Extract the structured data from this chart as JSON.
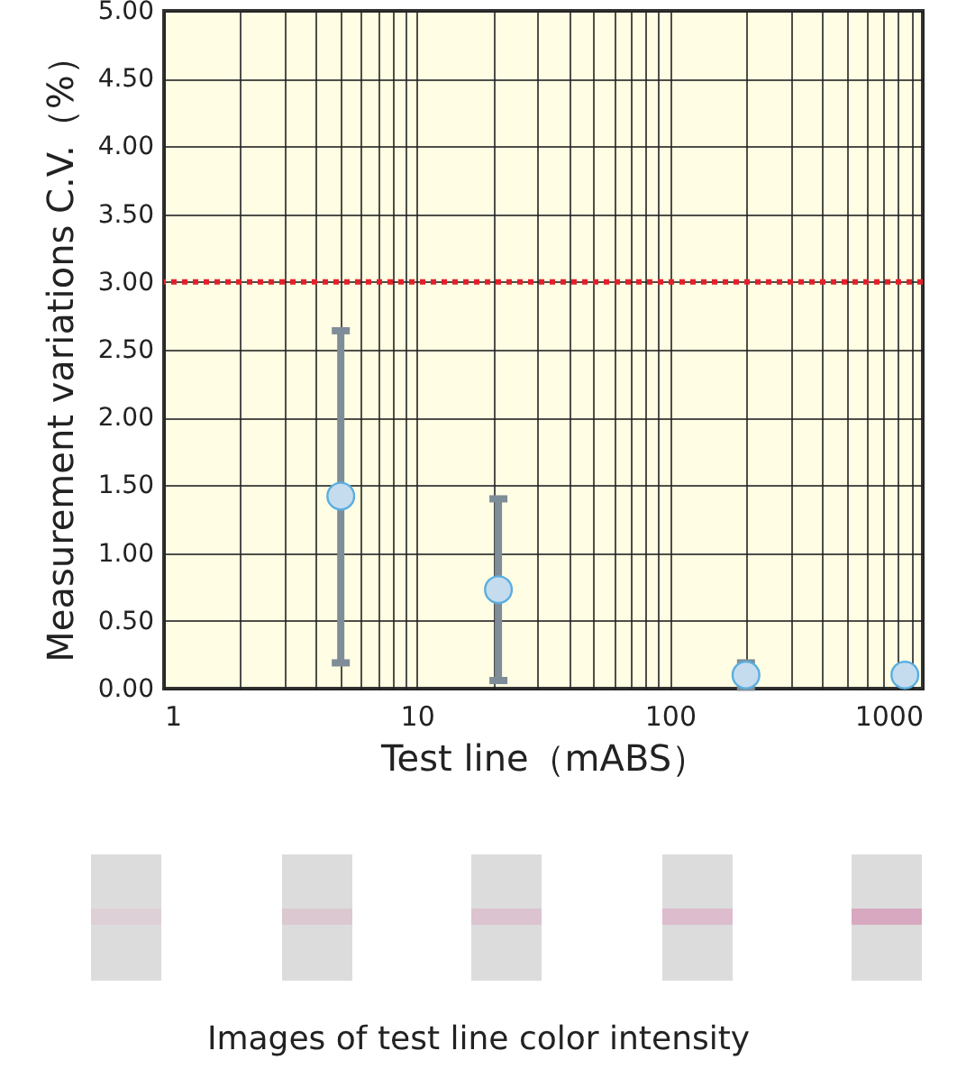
{
  "chart_data": {
    "type": "scatter",
    "xlabel": "Test line（mABS）",
    "ylabel": "Measurement variations C.V.（%）",
    "x": [
      5,
      21,
      200,
      850
    ],
    "series": [
      {
        "color": "#c5dcee",
        "values": [
          1.42,
          0.73,
          0.1,
          0.1
        ],
        "errors": [
          [
            0.19,
            2.64
          ],
          [
            0.06,
            1.4
          ],
          [
            0.01,
            0.19
          ],
          null
        ]
      }
    ],
    "log": "x",
    "grid": true,
    "marker": "circle",
    "xlim": [
      1,
      1000
    ],
    "xticks": [
      1,
      {
        "value": 2,
        "label": null
      },
      {
        "value": 3,
        "label": null
      },
      {
        "value": 4,
        "label": null
      },
      {
        "value": 5,
        "label": null
      },
      {
        "value": 6,
        "label": null
      },
      {
        "value": 7,
        "label": null
      },
      {
        "value": 8,
        "label": null
      },
      {
        "value": 9,
        "label": null
      },
      10,
      {
        "value": 20,
        "label": null
      },
      {
        "value": 30,
        "label": null
      },
      {
        "value": 40,
        "label": null
      },
      {
        "value": 50,
        "label": null
      },
      {
        "value": 60,
        "label": null
      },
      {
        "value": 70,
        "label": null
      },
      {
        "value": 80,
        "label": null
      },
      {
        "value": 90,
        "label": null
      },
      100,
      {
        "value": 200,
        "label": null
      },
      {
        "value": 300,
        "label": null
      },
      {
        "value": 400,
        "label": null
      },
      {
        "value": 500,
        "label": null
      },
      {
        "value": 600,
        "label": null
      },
      {
        "value": 700,
        "label": null
      },
      {
        "value": 800,
        "label": null
      },
      {
        "value": 900,
        "label": null
      },
      1000
    ],
    "ylim": [
      0,
      5
    ],
    "yticks": [
      {
        "value": 0,
        "label": "0.00"
      },
      {
        "value": 0.5,
        "label": "0.50"
      },
      {
        "value": 1,
        "label": "1.00"
      },
      {
        "value": 1.5,
        "label": "1.50"
      },
      {
        "value": 2,
        "label": "2.00"
      },
      {
        "value": 2.5,
        "label": "2.50"
      },
      {
        "value": 3,
        "label": "3.00"
      },
      {
        "value": 3.5,
        "label": "3.50"
      },
      {
        "value": 4,
        "label": "4.00"
      },
      {
        "value": 4.5,
        "label": "4.50"
      },
      {
        "value": 5,
        "label": "5.00"
      }
    ],
    "ref_lines": [
      {
        "axis": "y",
        "value": 3,
        "color": "#e3202a",
        "line_style": "dotted"
      }
    ],
    "annotations": [
      "Images of test line color intensity"
    ]
  }
}
